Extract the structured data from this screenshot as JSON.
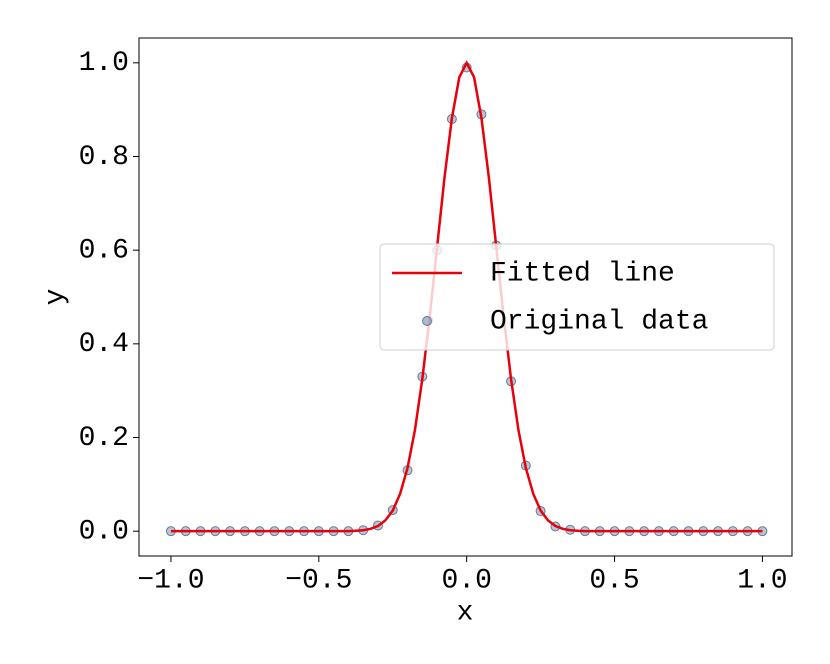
{
  "chart_data": {
    "type": "line",
    "x_label": "x",
    "y_label": "y",
    "xlim": [
      -1.108,
      1.1
    ],
    "ylim": [
      -0.053,
      1.053
    ],
    "xticks": [
      {
        "value": -1,
        "label": "−1.0"
      },
      {
        "value": -0.5,
        "label": "−0.5"
      },
      {
        "value": 0,
        "label": "0.0"
      },
      {
        "value": 0.5,
        "label": "0.5"
      },
      {
        "value": 1,
        "label": "1.0"
      }
    ],
    "yticks": [
      {
        "value": 0,
        "label": "0.0"
      },
      {
        "value": 0.2,
        "label": "0.2"
      },
      {
        "value": 0.4,
        "label": "0.4"
      },
      {
        "value": 0.6,
        "label": "0.6"
      },
      {
        "value": 0.8,
        "label": "0.8"
      },
      {
        "value": 1,
        "label": "1.0"
      }
    ],
    "grid": false,
    "legend": "center right",
    "series": [
      {
        "name": "Fitted line",
        "type": "line",
        "color": "#e8000b",
        "x": [
          -1,
          -0.975,
          -0.95,
          -0.925,
          -0.9,
          -0.875,
          -0.85,
          -0.825,
          -0.8,
          -0.775,
          -0.75,
          -0.725,
          -0.7,
          -0.675,
          -0.65,
          -0.625,
          -0.6,
          -0.575,
          -0.55,
          -0.525,
          -0.5,
          -0.475,
          -0.45,
          -0.425,
          -0.4,
          -0.375,
          -0.35,
          -0.325,
          -0.3,
          -0.275,
          -0.25,
          -0.225,
          -0.2,
          -0.175,
          -0.15,
          -0.125,
          -0.1,
          -0.075,
          -0.05,
          -0.025,
          0,
          0.025,
          0.05,
          0.075,
          0.1,
          0.125,
          0.15,
          0.175,
          0.2,
          0.225,
          0.25,
          0.275,
          0.3,
          0.325,
          0.35,
          0.375,
          0.4,
          0.425,
          0.45,
          0.475,
          0.5,
          0.525,
          0.55,
          0.575,
          0.6,
          0.625,
          0.65,
          0.675,
          0.7,
          0.725,
          0.75,
          0.775,
          0.8,
          0.825,
          0.85,
          0.875,
          0.9,
          0.925,
          0.95,
          0.975,
          1
        ],
        "values": [
          0,
          0,
          0,
          0,
          0,
          0,
          0,
          0,
          0,
          0,
          0,
          0,
          0,
          0,
          0,
          0,
          0,
          0,
          0,
          0,
          0,
          0,
          0,
          0,
          0,
          0.001,
          0.002,
          0.005,
          0.011,
          0.023,
          0.044,
          0.08,
          0.135,
          0.216,
          0.325,
          0.458,
          0.607,
          0.755,
          0.882,
          0.969,
          1,
          0.969,
          0.882,
          0.755,
          0.607,
          0.458,
          0.325,
          0.216,
          0.135,
          0.08,
          0.044,
          0.023,
          0.011,
          0.005,
          0.002,
          0.001,
          0,
          0,
          0,
          0,
          0,
          0,
          0,
          0,
          0,
          0,
          0,
          0,
          0,
          0,
          0,
          0,
          0,
          0,
          0,
          0,
          0,
          0,
          0,
          0,
          0
        ]
      },
      {
        "name": "Original data",
        "type": "scatter",
        "color": "#2b5d8c",
        "x": [
          -1,
          -0.95,
          -0.9,
          -0.85,
          -0.8,
          -0.75,
          -0.7,
          -0.65,
          -0.6,
          -0.55,
          -0.5,
          -0.45,
          -0.4,
          -0.35,
          -0.3,
          -0.25,
          -0.2,
          -0.15,
          -0.13,
          -0.1,
          -0.05,
          0,
          0.05,
          0.1,
          0.15,
          0.2,
          0.25,
          0.3,
          0.35,
          0.4,
          0.45,
          0.5,
          0.55,
          0.6,
          0.65,
          0.7,
          0.75,
          0.8,
          0.85,
          0.9,
          0.95,
          1
        ],
        "values": [
          0,
          0,
          0,
          0,
          0,
          0,
          0,
          0,
          0,
          0,
          0,
          0,
          0,
          0.002,
          0.012,
          0.045,
          0.13,
          0.33,
          0.45,
          0.6,
          0.88,
          0.99,
          0.89,
          0.61,
          0.32,
          0.14,
          0.043,
          0.01,
          0.003,
          0,
          0,
          0,
          0,
          0,
          0,
          0,
          0,
          0,
          0,
          0,
          0,
          0
        ]
      }
    ]
  }
}
